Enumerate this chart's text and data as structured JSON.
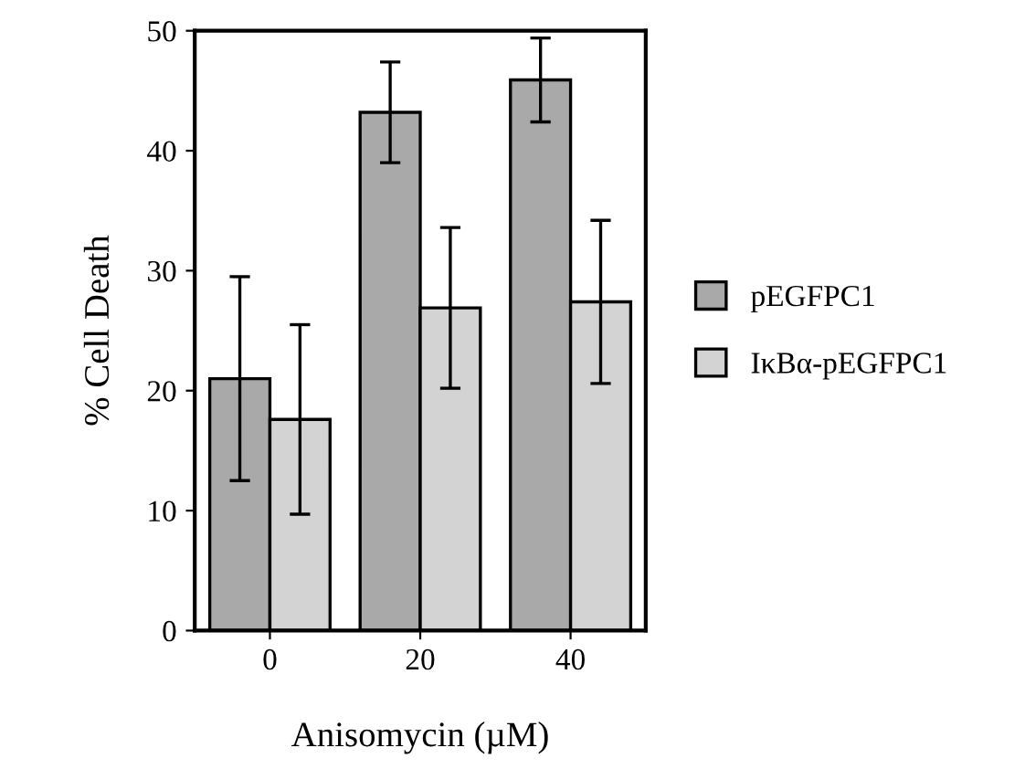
{
  "chart_data": {
    "type": "bar",
    "xlabel": "Anisomycin (µM)",
    "ylabel": "% Cell Death",
    "categories": [
      "0",
      "20",
      "40"
    ],
    "series": [
      {
        "name": "pEGFPC1",
        "color": "#a9a9a9",
        "values": [
          21,
          43.2,
          45.9
        ],
        "errors": [
          8.5,
          4.2,
          3.5
        ]
      },
      {
        "name": "IκBα-pEGFPC1",
        "color": "#d3d3d3",
        "values": [
          17.6,
          26.9,
          27.4
        ],
        "errors": [
          7.9,
          6.7,
          6.8
        ]
      }
    ],
    "ylim": [
      0,
      50
    ],
    "yticks": [
      0,
      10,
      20,
      30,
      40,
      50
    ],
    "grid": false,
    "legend": "right"
  }
}
